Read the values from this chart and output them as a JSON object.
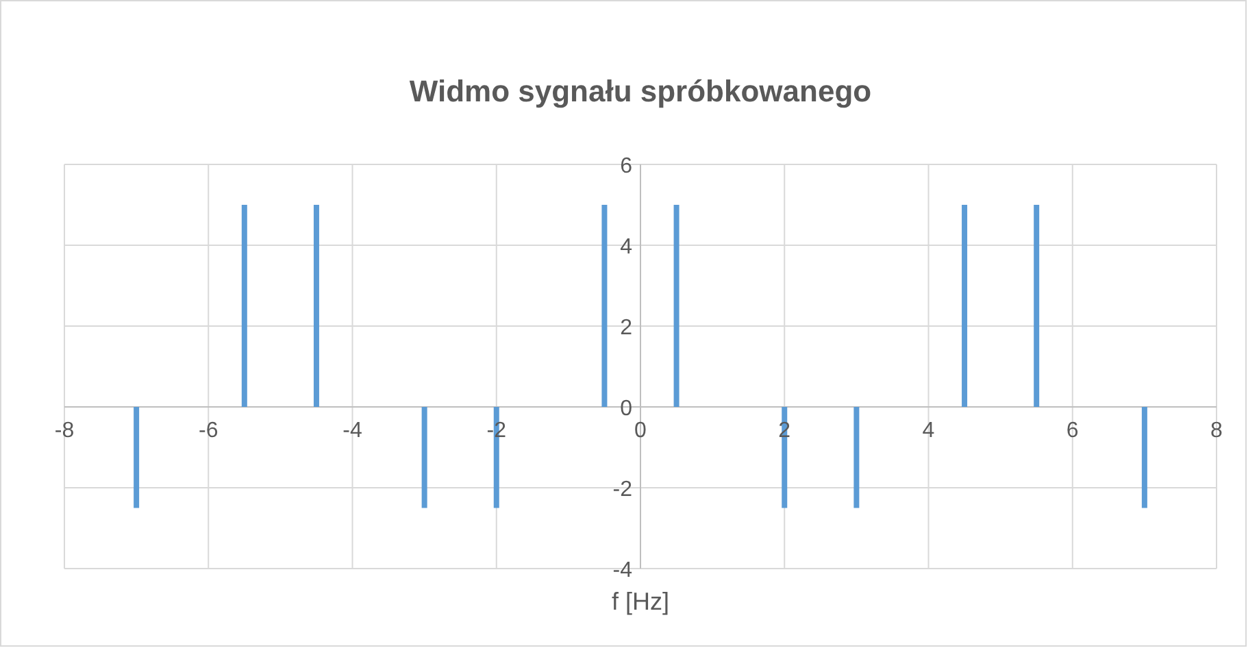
{
  "chart_data": {
    "type": "bar",
    "title": "Widmo sygnału spróbkowanego",
    "xlabel": "f [Hz]",
    "x": [
      -7,
      -5.5,
      -4.5,
      -3,
      -2,
      -0.5,
      0.5,
      2,
      3,
      4.5,
      5.5,
      7
    ],
    "values": [
      -2.5,
      5,
      5,
      -2.5,
      -2.5,
      5,
      5,
      -2.5,
      -2.5,
      5,
      5,
      -2.5
    ],
    "color": "#5b9bd5",
    "xlim": [
      -8,
      8
    ],
    "xticks": [
      -8,
      -6,
      -4,
      -2,
      0,
      2,
      4,
      6,
      8
    ],
    "ylim": [
      -4,
      6
    ],
    "yticks": [
      -4,
      -2,
      0,
      2,
      4,
      6
    ],
    "grid": true
  }
}
